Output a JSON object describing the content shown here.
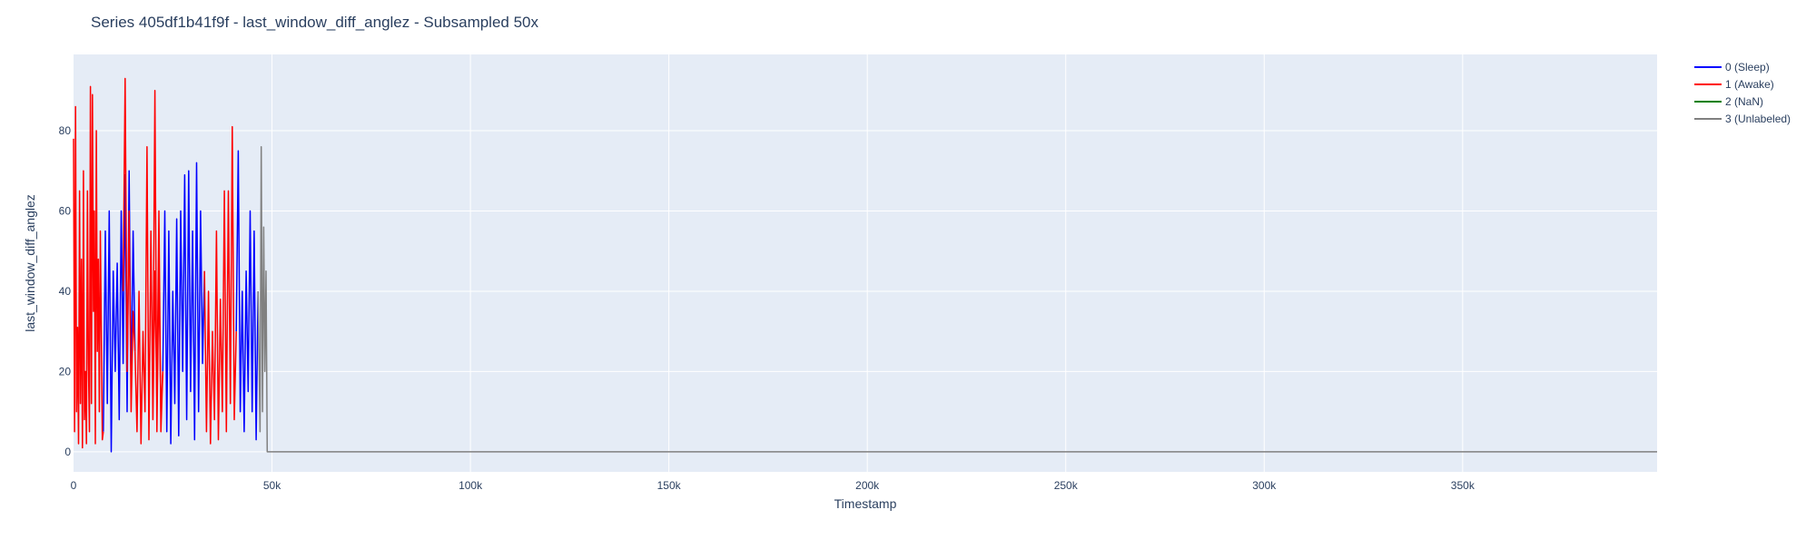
{
  "chart_data": {
    "type": "line",
    "title": "Series 405df1b41f9f - last_window_diff_anglez - Subsampled 50x",
    "xlabel": "Timestamp",
    "ylabel": "last_window_diff_anglez",
    "xlim": [
      0,
      399000
    ],
    "ylim": [
      -5,
      99
    ],
    "x_ticks": [
      {
        "value": 0,
        "label": "0"
      },
      {
        "value": 50000,
        "label": "50k"
      },
      {
        "value": 100000,
        "label": "100k"
      },
      {
        "value": 150000,
        "label": "150k"
      },
      {
        "value": 200000,
        "label": "200k"
      },
      {
        "value": 250000,
        "label": "250k"
      },
      {
        "value": 300000,
        "label": "300k"
      },
      {
        "value": 350000,
        "label": "350k"
      }
    ],
    "y_ticks": [
      {
        "value": 0,
        "label": "0"
      },
      {
        "value": 20,
        "label": "20"
      },
      {
        "value": 40,
        "label": "40"
      },
      {
        "value": 60,
        "label": "60"
      },
      {
        "value": 80,
        "label": "80"
      }
    ],
    "grid": true,
    "legend_position": "top-right",
    "plot_background": "#E5ECF6",
    "series": [
      {
        "name": "0 (Sleep)",
        "color": "#0000FF",
        "segments": [
          {
            "x": [
              7500,
              8000,
              8500,
              9000,
              9500,
              10000,
              10500,
              11000,
              11500,
              12000,
              12500,
              13000,
              13500,
              14000,
              14500,
              15000,
              15500
            ],
            "y": [
              5,
              55,
              12,
              60,
              0,
              45,
              20,
              47,
              8,
              60,
              22,
              69,
              10,
              70,
              15,
              55,
              25
            ]
          },
          {
            "x": [
              22500,
              23000,
              23500,
              24000,
              24500,
              25000,
              25500,
              26000,
              26500,
              27000,
              27500,
              28000,
              28500,
              29000,
              29500,
              30000,
              30500,
              31000,
              31500,
              32000,
              32500,
              33000
            ],
            "y": [
              20,
              60,
              5,
              55,
              2,
              40,
              12,
              58,
              4,
              60,
              20,
              69,
              8,
              70,
              15,
              55,
              3,
              72,
              10,
              60,
              22,
              45
            ]
          },
          {
            "x": [
              41000,
              41500,
              42000,
              42500,
              43000,
              43500,
              44000,
              44500,
              45000,
              45500,
              46000,
              46500
            ],
            "y": [
              30,
              75,
              10,
              40,
              5,
              45,
              15,
              60,
              10,
              55,
              3,
              40
            ]
          }
        ]
      },
      {
        "name": "1 (Awake)",
        "color": "#FF0000",
        "segments": [
          {
            "x": [
              0,
              250,
              500,
              750,
              1000,
              1250,
              1500,
              1750,
              2000,
              2250,
              2500,
              2750,
              3000,
              3250,
              3500,
              3750,
              4000,
              4250,
              4500,
              4750,
              5000,
              5250,
              5500,
              5750,
              6000,
              6250,
              6500,
              6750,
              7000,
              7250,
              7500
            ],
            "y": [
              78,
              5,
              86,
              10,
              31,
              2,
              65,
              12,
              48,
              1,
              70,
              8,
              20,
              2,
              65,
              22,
              5,
              91,
              12,
              89,
              35,
              60,
              2,
              80,
              25,
              48,
              10,
              55,
              30,
              3,
              5
            ]
          },
          {
            "x": [
              15500,
              16000,
              16500,
              17000,
              17500,
              18000,
              18500,
              19000,
              19500,
              20000,
              20500,
              21000,
              21500,
              22000,
              22500
            ],
            "y": [
              25,
              5,
              40,
              2,
              30,
              10,
              76,
              3,
              55,
              8,
              45,
              12,
              60,
              5,
              20
            ]
          },
          {
            "x": [
              12500,
              13000,
              13500,
              14000,
              14500,
              15000,
              15500
            ],
            "y": [
              40,
              93,
              20,
              60,
              10,
              35,
              25
            ]
          },
          {
            "x": [
              20000,
              20500,
              21000,
              21500,
              22000,
              22500
            ],
            "y": [
              15,
              90,
              5,
              45,
              10,
              20
            ]
          },
          {
            "x": [
              33000,
              33500,
              34000,
              34500,
              35000,
              35500,
              36000,
              36500,
              37000,
              37500,
              38000,
              38500,
              39000,
              39500,
              40000,
              40500,
              41000
            ],
            "y": [
              45,
              5,
              40,
              2,
              30,
              8,
              55,
              3,
              38,
              10,
              65,
              5,
              65,
              12,
              81,
              8,
              30
            ]
          }
        ]
      },
      {
        "name": "2 (NaN)",
        "color": "#008000",
        "segments": []
      },
      {
        "name": "3 (Unlabeled)",
        "color": "#808080",
        "segments": [
          {
            "x": [
              46500,
              47000,
              47300,
              47600,
              47900,
              48200,
              48500,
              48800,
              49000,
              399000
            ],
            "y": [
              40,
              5,
              76,
              10,
              56,
              20,
              45,
              0,
              0,
              0
            ]
          }
        ]
      }
    ]
  }
}
